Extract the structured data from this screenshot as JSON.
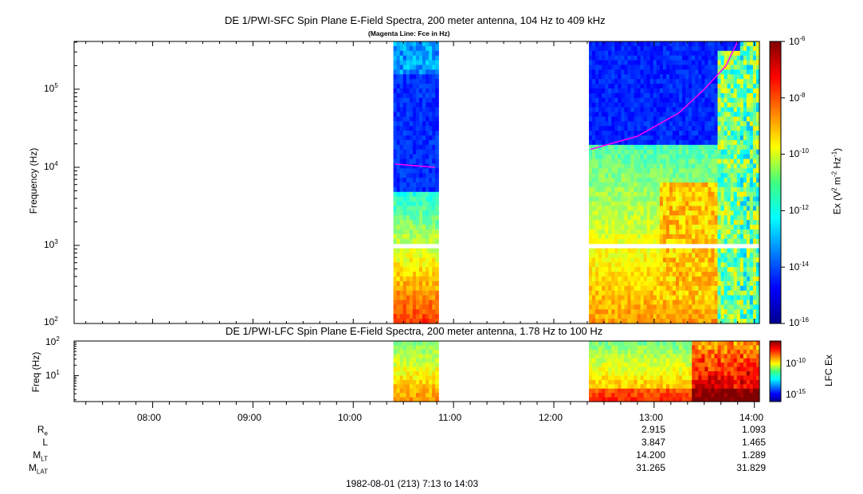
{
  "titles": {
    "sfc_title": "DE 1/PWI-SFC  Spin Plane E-Field Spectra, 200 meter antenna, 104 Hz to 409 kHz",
    "sfc_subtitle": "(Magenta Line: Fce in Hz)",
    "lfc_title": "DE 1/PWI-LFC  Spin Plane E-Field Spectra, 200 meter antenna, 1.78 Hz to 100 Hz"
  },
  "chart_data": [
    {
      "type": "heatmap",
      "name": "DE 1/PWI-SFC Spin Plane E-Field Spectra",
      "ylabel": "Frequency (Hz)",
      "yscale": "log",
      "ylim": [
        100,
        409000
      ],
      "yticks": [
        {
          "base": "10",
          "exp": "5"
        },
        {
          "base": "10",
          "exp": "4"
        },
        {
          "base": "10",
          "exp": "3"
        },
        {
          "base": "10",
          "exp": "2"
        }
      ],
      "xlim": [
        "07:13",
        "14:03"
      ],
      "colorbar": {
        "label": "Ex (V2 m-2 Hz-1)",
        "scale": "log",
        "range": [
          1e-16,
          1e-06
        ],
        "ticks": [
          {
            "base": "10",
            "exp": "-6"
          },
          {
            "base": "10",
            "exp": "-8"
          },
          {
            "base": "10",
            "exp": "-10"
          },
          {
            "base": "10",
            "exp": "-12"
          },
          {
            "base": "10",
            "exp": "-14"
          },
          {
            "base": "10",
            "exp": "-16"
          }
        ]
      },
      "data_intervals": [
        {
          "start": "10:24",
          "end": "10:51"
        },
        {
          "start": "12:21",
          "end": "14:03"
        }
      ],
      "fce_line": [
        {
          "time": "10:25",
          "freq_hz": 11000
        },
        {
          "time": "10:49",
          "freq_hz": 10000
        },
        {
          "time": "12:22",
          "freq_hz": 17000
        },
        {
          "time": "12:50",
          "freq_hz": 25000
        },
        {
          "time": "13:15",
          "freq_hz": 50000
        },
        {
          "time": "13:30",
          "freq_hz": 100000
        },
        {
          "time": "13:43",
          "freq_hz": 200000
        },
        {
          "time": "13:50",
          "freq_hz": 409000
        }
      ],
      "annotation": "Magenta Line: Fce in Hz"
    },
    {
      "type": "heatmap",
      "name": "DE 1/PWI-LFC Spin Plane E-Field Spectra",
      "ylabel": "Freq (Hz)",
      "yscale": "log",
      "ylim": [
        1.78,
        100
      ],
      "yticks": [
        {
          "base": "10",
          "exp": "2"
        },
        {
          "base": "10",
          "exp": "1"
        }
      ],
      "xlim": [
        "07:13",
        "14:03"
      ],
      "xticks": [
        "08:00",
        "09:00",
        "10:00",
        "11:00",
        "12:00",
        "13:00",
        "14:00"
      ],
      "colorbar": {
        "label": "LFC Ex",
        "scale": "log",
        "ticks": [
          {
            "base": "10",
            "exp": "-10"
          },
          {
            "base": "10",
            "exp": "-15"
          }
        ]
      },
      "data_intervals": [
        {
          "start": "10:24",
          "end": "10:51"
        },
        {
          "start": "12:21",
          "end": "14:03"
        }
      ]
    }
  ],
  "ephemeris": {
    "rows": [
      {
        "label": "R",
        "sub": "e",
        "v1300": "2.915",
        "v1400": "1.093"
      },
      {
        "label": "L",
        "sub": "",
        "v1300": "3.847",
        "v1400": "1.465"
      },
      {
        "label": "M",
        "sub": "LT",
        "v1300": "14.200",
        "v1400": "1.289"
      },
      {
        "label": "M",
        "sub": "LAT",
        "v1300": "31.265",
        "v1400": "31.829"
      }
    ]
  },
  "footer": "1982-08-01 (213) 7:13 to 14:03"
}
